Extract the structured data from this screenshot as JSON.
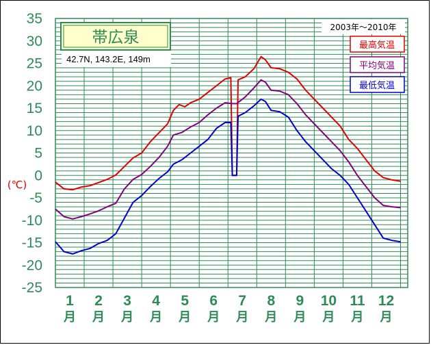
{
  "chart_data": {
    "type": "line",
    "title": "帯広泉",
    "location": "42.7N,  143.2E,  149m",
    "period": "2003年〜2010年",
    "ylabel": "(℃)",
    "ylim": [
      -25,
      35
    ],
    "y_ticks": [
      35,
      30,
      25,
      20,
      15,
      10,
      5,
      0,
      -5,
      -10,
      -15,
      -20,
      -25
    ],
    "months": [
      "1",
      "2",
      "3",
      "4",
      "5",
      "6",
      "7",
      "8",
      "9",
      "10",
      "11",
      "12"
    ],
    "month_unit": "月",
    "grid": true,
    "legend_position": "top-right",
    "x_range": [
      0.5,
      12.75
    ],
    "series": [
      {
        "name": "最高気温",
        "color": "#e00000",
        "points": [
          [
            0.5,
            -1.5
          ],
          [
            0.8,
            -3
          ],
          [
            1.1,
            -3.2
          ],
          [
            1.4,
            -2.6
          ],
          [
            1.7,
            -2.3
          ],
          [
            2.0,
            -1.6
          ],
          [
            2.3,
            -0.9
          ],
          [
            2.6,
            0.1
          ],
          [
            2.9,
            2.0
          ],
          [
            3.2,
            3.9
          ],
          [
            3.5,
            5.0
          ],
          [
            3.8,
            7.5
          ],
          [
            4.1,
            9.5
          ],
          [
            4.4,
            11.5
          ],
          [
            4.6,
            14.5
          ],
          [
            4.8,
            15.8
          ],
          [
            5.0,
            15.3
          ],
          [
            5.2,
            16.2
          ],
          [
            5.5,
            17.0
          ],
          [
            5.8,
            18.5
          ],
          [
            6.1,
            20.0
          ],
          [
            6.4,
            21.5
          ],
          [
            6.6,
            21.8
          ],
          [
            6.65,
            0
          ],
          [
            6.8,
            0
          ],
          [
            6.85,
            21.3
          ],
          [
            7.1,
            22.0
          ],
          [
            7.4,
            23.8
          ],
          [
            7.65,
            26.5
          ],
          [
            7.8,
            25.8
          ],
          [
            8.0,
            24.0
          ],
          [
            8.3,
            23.8
          ],
          [
            8.6,
            23.0
          ],
          [
            8.9,
            21.5
          ],
          [
            9.2,
            19.0
          ],
          [
            9.5,
            17.0
          ],
          [
            9.8,
            15.0
          ],
          [
            10.1,
            13.0
          ],
          [
            10.4,
            11.0
          ],
          [
            10.7,
            8.0
          ],
          [
            11.0,
            6.0
          ],
          [
            11.3,
            3.5
          ],
          [
            11.6,
            1.0
          ],
          [
            11.9,
            -0.5
          ],
          [
            12.2,
            -1.0
          ],
          [
            12.5,
            -1.3
          ]
        ]
      },
      {
        "name": "平均気温",
        "color": "#800080",
        "points": [
          [
            0.5,
            -7.5
          ],
          [
            0.8,
            -9.2
          ],
          [
            1.1,
            -9.7
          ],
          [
            1.4,
            -9.2
          ],
          [
            1.7,
            -8.6
          ],
          [
            2.0,
            -7.9
          ],
          [
            2.3,
            -7.0
          ],
          [
            2.6,
            -6.2
          ],
          [
            2.9,
            -3.0
          ],
          [
            3.2,
            -0.9
          ],
          [
            3.5,
            0.2
          ],
          [
            3.8,
            2.0
          ],
          [
            4.1,
            4.0
          ],
          [
            4.4,
            6.5
          ],
          [
            4.6,
            9.0
          ],
          [
            4.9,
            9.6
          ],
          [
            5.2,
            10.8
          ],
          [
            5.5,
            11.8
          ],
          [
            5.8,
            13.5
          ],
          [
            6.1,
            15.0
          ],
          [
            6.4,
            16.2
          ],
          [
            6.65,
            16.0
          ],
          [
            6.8,
            16.0
          ],
          [
            7.1,
            17.5
          ],
          [
            7.4,
            19.5
          ],
          [
            7.65,
            21.3
          ],
          [
            7.8,
            20.8
          ],
          [
            8.0,
            19.0
          ],
          [
            8.3,
            18.8
          ],
          [
            8.6,
            18.0
          ],
          [
            8.9,
            16.0
          ],
          [
            9.2,
            13.5
          ],
          [
            9.5,
            11.5
          ],
          [
            9.8,
            9.5
          ],
          [
            10.1,
            7.5
          ],
          [
            10.4,
            5.5
          ],
          [
            10.7,
            3.0
          ],
          [
            11.0,
            0.0
          ],
          [
            11.3,
            -2.5
          ],
          [
            11.6,
            -5.0
          ],
          [
            11.9,
            -6.7
          ],
          [
            12.2,
            -7.0
          ],
          [
            12.5,
            -7.2
          ]
        ]
      },
      {
        "name": "最低気温",
        "color": "#0000cc",
        "points": [
          [
            0.5,
            -14.8
          ],
          [
            0.8,
            -17.0
          ],
          [
            1.1,
            -17.5
          ],
          [
            1.4,
            -16.8
          ],
          [
            1.7,
            -16.3
          ],
          [
            2.0,
            -15.2
          ],
          [
            2.3,
            -14.5
          ],
          [
            2.6,
            -13.0
          ],
          [
            2.9,
            -9.5
          ],
          [
            3.2,
            -6.0
          ],
          [
            3.5,
            -4.5
          ],
          [
            3.8,
            -2.5
          ],
          [
            4.1,
            -0.7
          ],
          [
            4.4,
            0.8
          ],
          [
            4.6,
            2.5
          ],
          [
            4.9,
            3.5
          ],
          [
            5.2,
            5.0
          ],
          [
            5.5,
            6.5
          ],
          [
            5.8,
            8.0
          ],
          [
            6.1,
            10.5
          ],
          [
            6.4,
            11.8
          ],
          [
            6.6,
            11.8
          ],
          [
            6.65,
            0
          ],
          [
            6.8,
            0
          ],
          [
            6.85,
            13.2
          ],
          [
            7.1,
            14.0
          ],
          [
            7.4,
            15.5
          ],
          [
            7.65,
            17.0
          ],
          [
            7.8,
            16.5
          ],
          [
            8.0,
            14.5
          ],
          [
            8.3,
            14.2
          ],
          [
            8.6,
            13.0
          ],
          [
            8.9,
            10.0
          ],
          [
            9.2,
            7.5
          ],
          [
            9.5,
            5.5
          ],
          [
            9.8,
            3.5
          ],
          [
            10.1,
            1.5
          ],
          [
            10.4,
            0.0
          ],
          [
            10.7,
            -2.0
          ],
          [
            11.0,
            -5.0
          ],
          [
            11.3,
            -8.0
          ],
          [
            11.6,
            -11.0
          ],
          [
            11.9,
            -14.0
          ],
          [
            12.2,
            -14.5
          ],
          [
            12.5,
            -14.8
          ]
        ]
      }
    ]
  }
}
